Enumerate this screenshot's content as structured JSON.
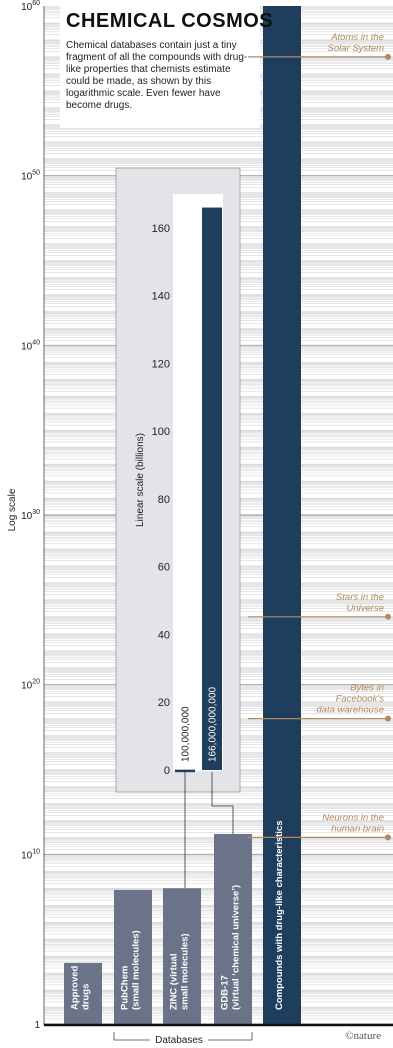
{
  "header": {
    "title": "CHEMICAL COSMOS",
    "subtitle": "Chemical databases contain just a tiny fragment of all the compounds with drug-like properties that chemists estimate could be made, as shown by this logarithmic scale. Even fewer have become drugs."
  },
  "chart_data": [
    {
      "type": "bar",
      "scale": "log",
      "ylabel": "Log scale",
      "ylim_exponent": [
        0,
        60
      ],
      "ticks": [
        {
          "exponent": 0,
          "label": "1"
        },
        {
          "exponent": 10,
          "label": "10",
          "sup": "10"
        },
        {
          "exponent": 20,
          "label": "10",
          "sup": "20"
        },
        {
          "exponent": 30,
          "label": "10",
          "sup": "30"
        },
        {
          "exponent": 40,
          "label": "10",
          "sup": "40"
        },
        {
          "exponent": 50,
          "label": "10",
          "sup": "50"
        },
        {
          "exponent": 60,
          "label": "10",
          "sup": "60"
        }
      ],
      "bars": [
        {
          "label": "Approved drugs",
          "lines": [
            "Approved",
            "drugs"
          ],
          "log_value": 3.6
        },
        {
          "label": "PubChem (small molecules)",
          "lines": [
            "PubChem",
            "(small molecules)"
          ],
          "log_value": 7.9
        },
        {
          "label": "ZINC (virtual small molecules)",
          "lines": [
            "ZINC (virtual",
            "small molecules)"
          ],
          "log_value": 8.0
        },
        {
          "label": "GDB-17 (virtual ‘chemical universe’)",
          "lines": [
            "GDB-17",
            "(virtual ‘chemical universe’)"
          ],
          "log_value": 11.2
        },
        {
          "label": "Compounds with drug-like characteristics",
          "lines": [
            "Compounds with drug-like characteristics"
          ],
          "log_value": 60
        }
      ],
      "group_label": "Databases",
      "references": [
        {
          "lines": [
            "Atoms in the",
            "Solar System"
          ],
          "exponent": 57
        },
        {
          "lines": [
            "Stars in the",
            "Universe"
          ],
          "exponent": 24
        },
        {
          "lines": [
            "Bytes in",
            "Facebook’s",
            "data warehouse"
          ],
          "exponent": 18
        },
        {
          "lines": [
            "Neurons in the",
            "human brain"
          ],
          "exponent": 11
        }
      ]
    },
    {
      "type": "bar",
      "scale": "linear",
      "ylabel": "Linear scale (billions)",
      "ylim": [
        0,
        170
      ],
      "yticks": [
        0,
        20,
        40,
        60,
        80,
        100,
        120,
        140,
        160
      ],
      "bars": [
        {
          "value": 0.1,
          "label": "100,000,000"
        },
        {
          "value": 166,
          "label": "166,000,000,000"
        }
      ]
    }
  ],
  "credit": "©nature",
  "colors": {
    "bar": "#6b7389",
    "drug_like_bar": "#1f3d5c",
    "reference": "#b08a62",
    "inset_bg": "#e3e4e8",
    "grid": "#c8c8c8"
  }
}
